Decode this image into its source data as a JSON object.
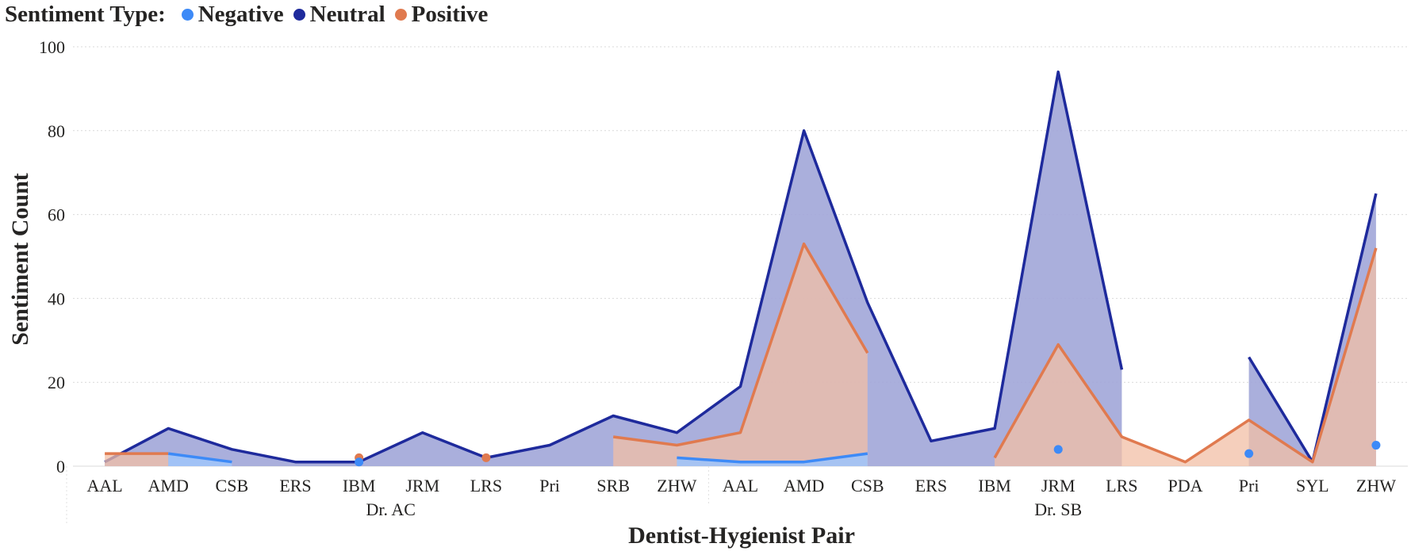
{
  "legend": {
    "title": "Sentiment Type:",
    "items": [
      {
        "label": "Negative",
        "color": "#3d8af7"
      },
      {
        "label": "Neutral",
        "color": "#1e2a9c"
      },
      {
        "label": "Positive",
        "color": "#e07a4f"
      }
    ]
  },
  "chart_data": {
    "type": "area",
    "title": "",
    "xlabel": "Dentist-Hygienist Pair",
    "ylabel": "Sentiment Count",
    "ylim": [
      0,
      100
    ],
    "yticks": [
      0,
      20,
      40,
      60,
      80,
      100
    ],
    "grid": true,
    "legend_position": "top-left",
    "groups": [
      {
        "label": "Dr. AC",
        "categories": [
          "AAL",
          "AMD",
          "CSB",
          "ERS",
          "IBM",
          "JRM",
          "LRS",
          "Pri",
          "SRB",
          "ZHW"
        ]
      },
      {
        "label": "Dr. SB",
        "categories": [
          "AAL",
          "AMD",
          "CSB",
          "ERS",
          "IBM",
          "JRM",
          "LRS",
          "PDA",
          "Pri",
          "SYL",
          "ZHW"
        ]
      }
    ],
    "series": [
      {
        "name": "Negative",
        "color": "#3d8af7",
        "fill": "#a0c4f8",
        "values": [
          null,
          3,
          1,
          null,
          1,
          null,
          null,
          null,
          null,
          2,
          1,
          1,
          3,
          null,
          null,
          4,
          null,
          null,
          3,
          null,
          5
        ]
      },
      {
        "name": "Neutral",
        "color": "#1e2a9c",
        "fill": "#a1a6d8",
        "values": [
          1,
          9,
          4,
          1,
          1,
          8,
          2,
          5,
          12,
          8,
          19,
          80,
          39,
          6,
          9,
          94,
          23,
          null,
          26,
          1,
          65
        ]
      },
      {
        "name": "Positive",
        "color": "#e07a4f",
        "fill": "#f2bfa5",
        "values": [
          3,
          3,
          null,
          null,
          2,
          null,
          2,
          null,
          7,
          5,
          8,
          53,
          27,
          null,
          2,
          29,
          7,
          1,
          11,
          1,
          52
        ]
      }
    ]
  }
}
